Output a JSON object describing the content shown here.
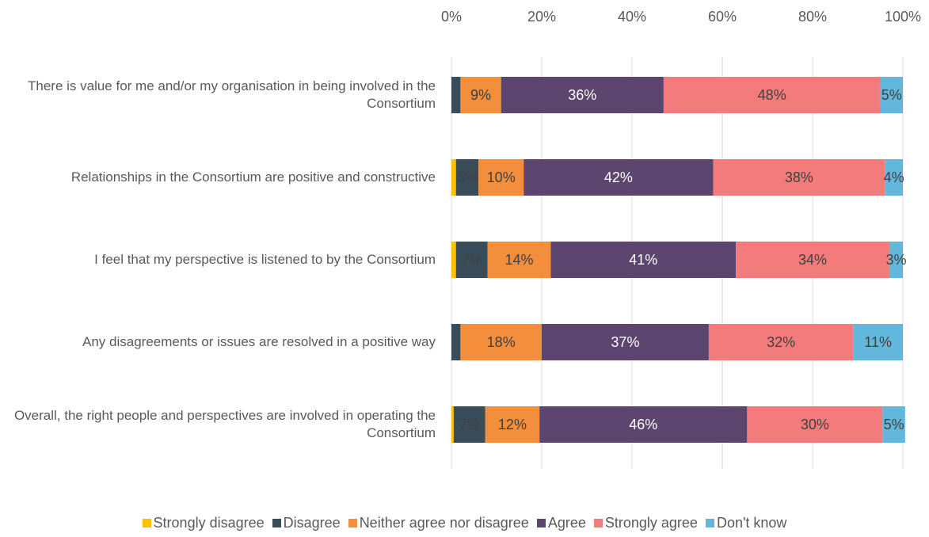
{
  "chart_data": {
    "type": "stacked-bar-horizontal",
    "categories": [
      "There is value for me and/or my organisation in being involved in the Consortium",
      "Relationships in the Consortium are positive and constructive",
      "I feel that my perspective is listened to by the Consortium",
      "Any disagreements or issues are resolved in a positive way",
      "Overall, the right people and perspectives are involved in operating the Consortium"
    ],
    "series": [
      {
        "name": "Strongly disagree",
        "color": "#ffc000",
        "values": [
          0,
          1,
          1,
          0,
          0.5
        ],
        "value_labels": [
          null,
          null,
          null,
          null,
          null
        ]
      },
      {
        "name": "Disagree",
        "color": "#394c5a",
        "values": [
          2,
          5,
          7,
          2,
          7
        ],
        "value_labels": [
          null,
          "5%",
          "7%",
          null,
          "7%"
        ]
      },
      {
        "name": "Neither agree nor disagree",
        "color": "#f28e3c",
        "values": [
          9,
          10,
          14,
          18,
          12
        ],
        "value_labels": [
          "9%",
          "10%",
          "14%",
          "18%",
          "12%"
        ]
      },
      {
        "name": "Agree",
        "color": "#5c456e",
        "values": [
          36,
          42,
          41,
          37,
          46
        ],
        "value_labels": [
          "36%",
          "42%",
          "41%",
          "37%",
          "46%"
        ]
      },
      {
        "name": "Strongly agree",
        "color": "#f47b7b",
        "values": [
          48,
          38,
          34,
          32,
          30
        ],
        "value_labels": [
          "48%",
          "38%",
          "34%",
          "32%",
          "30%"
        ]
      },
      {
        "name": "Don't know",
        "color": "#63b7dc",
        "values": [
          5,
          4,
          3,
          11,
          5
        ],
        "value_labels": [
          "5%",
          "4%",
          "3%",
          "11%",
          "5%"
        ]
      }
    ],
    "xlim": [
      0,
      100
    ],
    "xticks": [
      {
        "value": 0,
        "label": "0%"
      },
      {
        "value": 20,
        "label": "20%"
      },
      {
        "value": 40,
        "label": "40%"
      },
      {
        "value": 60,
        "label": "60%"
      },
      {
        "value": 80,
        "label": "80%"
      },
      {
        "value": 100,
        "label": "100%"
      }
    ],
    "grid": true,
    "legend": "bottom"
  }
}
